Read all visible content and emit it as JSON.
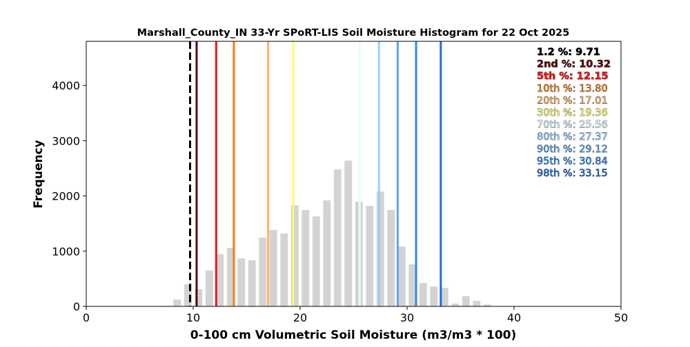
{
  "chart_data": {
    "type": "bar",
    "title": "Marshall_County_IN 33-Yr SPoRT-LIS Soil Moisture Histogram for 22 Oct 2025",
    "xlabel": "0-100 cm Volumetric Soil Moisture (m3/m3 * 100)",
    "ylabel": "Frequency",
    "xlim": [
      0,
      50
    ],
    "ylim": [
      0,
      4800
    ],
    "xticks": [
      0,
      10,
      20,
      30,
      40,
      50
    ],
    "yticks": [
      0,
      1000,
      2000,
      3000,
      4000
    ],
    "bar_color": "#d3d3d3",
    "bins": [
      7.5,
      8.5,
      9.5,
      10.5,
      11.5,
      12.5,
      13.5,
      14.5,
      15.5,
      16.5,
      17.5,
      18.5,
      19.5,
      20.5,
      21.5,
      22.5,
      23.5,
      24.5,
      25.5,
      26.5,
      27.5,
      28.5,
      29.5,
      30.5,
      31.5,
      32.5,
      33.5,
      34.5,
      35.5,
      36.5,
      37.5
    ],
    "values": [
      10,
      125,
      400,
      310,
      650,
      945,
      1060,
      870,
      835,
      1245,
      1385,
      1320,
      1830,
      1745,
      1630,
      1920,
      2480,
      2640,
      1895,
      1820,
      2080,
      1745,
      1085,
      760,
      425,
      360,
      335,
      50,
      185,
      100,
      35
    ],
    "percentiles": [
      {
        "label": "1.2 %: 9.71",
        "value": 9.71,
        "color": "#000000",
        "dashed": true
      },
      {
        "label": "2nd %: 10.32",
        "value": 10.32,
        "color": "#5c0a0a",
        "dashed": false
      },
      {
        "label": "5th %: 12.15",
        "value": 12.15,
        "color": "#ff1010",
        "dashed": false
      },
      {
        "label": "10th %: 13.80",
        "value": 13.8,
        "color": "#f08010",
        "dashed": false
      },
      {
        "label": "20th %: 17.01",
        "value": 17.01,
        "color": "#ffb060",
        "dashed": false
      },
      {
        "label": "30th %: 19.36",
        "value": 19.36,
        "color": "#ffff60",
        "dashed": false
      },
      {
        "label": "70th %: 25.56",
        "value": 25.56,
        "color": "#e0ffff",
        "dashed": false
      },
      {
        "label": "80th %: 27.37",
        "value": 27.37,
        "color": "#96d0ff",
        "dashed": false
      },
      {
        "label": "90th %: 29.12",
        "value": 29.12,
        "color": "#5aa5f0",
        "dashed": false
      },
      {
        "label": "95th %: 30.84",
        "value": 30.84,
        "color": "#2f88f0",
        "dashed": false
      },
      {
        "label": "98th %: 33.15",
        "value": 33.15,
        "color": "#1a6ddc",
        "dashed": false
      }
    ],
    "legend_position": "top-right",
    "grid": false
  }
}
